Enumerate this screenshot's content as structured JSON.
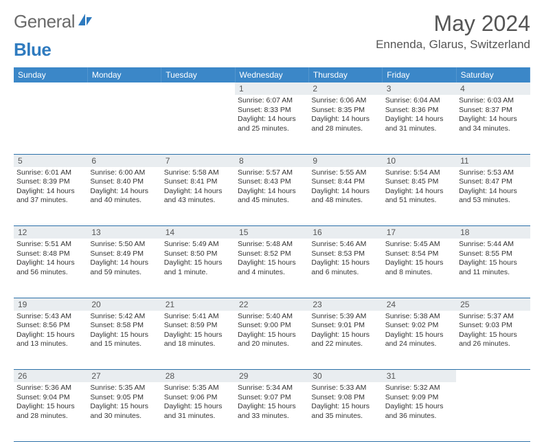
{
  "brand": {
    "name_part1": "General",
    "name_part2": "Blue"
  },
  "title": "May 2024",
  "location": "Ennenda, Glarus, Switzerland",
  "colors": {
    "header_bg": "#3b87c8",
    "header_text": "#ffffff",
    "daynum_bg": "#e9edf0",
    "border": "#2a6fa8",
    "brand_gray": "#6a6a6a",
    "brand_blue": "#2f7bbf"
  },
  "weekdays": [
    "Sunday",
    "Monday",
    "Tuesday",
    "Wednesday",
    "Thursday",
    "Friday",
    "Saturday"
  ],
  "weeks": [
    {
      "nums": [
        "",
        "",
        "",
        "1",
        "2",
        "3",
        "4"
      ],
      "cells": [
        {
          "sunrise": "",
          "sunset": "",
          "daylight": ""
        },
        {
          "sunrise": "",
          "sunset": "",
          "daylight": ""
        },
        {
          "sunrise": "",
          "sunset": "",
          "daylight": ""
        },
        {
          "sunrise": "Sunrise: 6:07 AM",
          "sunset": "Sunset: 8:33 PM",
          "daylight": "Daylight: 14 hours and 25 minutes."
        },
        {
          "sunrise": "Sunrise: 6:06 AM",
          "sunset": "Sunset: 8:35 PM",
          "daylight": "Daylight: 14 hours and 28 minutes."
        },
        {
          "sunrise": "Sunrise: 6:04 AM",
          "sunset": "Sunset: 8:36 PM",
          "daylight": "Daylight: 14 hours and 31 minutes."
        },
        {
          "sunrise": "Sunrise: 6:03 AM",
          "sunset": "Sunset: 8:37 PM",
          "daylight": "Daylight: 14 hours and 34 minutes."
        }
      ]
    },
    {
      "nums": [
        "5",
        "6",
        "7",
        "8",
        "9",
        "10",
        "11"
      ],
      "cells": [
        {
          "sunrise": "Sunrise: 6:01 AM",
          "sunset": "Sunset: 8:39 PM",
          "daylight": "Daylight: 14 hours and 37 minutes."
        },
        {
          "sunrise": "Sunrise: 6:00 AM",
          "sunset": "Sunset: 8:40 PM",
          "daylight": "Daylight: 14 hours and 40 minutes."
        },
        {
          "sunrise": "Sunrise: 5:58 AM",
          "sunset": "Sunset: 8:41 PM",
          "daylight": "Daylight: 14 hours and 43 minutes."
        },
        {
          "sunrise": "Sunrise: 5:57 AM",
          "sunset": "Sunset: 8:43 PM",
          "daylight": "Daylight: 14 hours and 45 minutes."
        },
        {
          "sunrise": "Sunrise: 5:55 AM",
          "sunset": "Sunset: 8:44 PM",
          "daylight": "Daylight: 14 hours and 48 minutes."
        },
        {
          "sunrise": "Sunrise: 5:54 AM",
          "sunset": "Sunset: 8:45 PM",
          "daylight": "Daylight: 14 hours and 51 minutes."
        },
        {
          "sunrise": "Sunrise: 5:53 AM",
          "sunset": "Sunset: 8:47 PM",
          "daylight": "Daylight: 14 hours and 53 minutes."
        }
      ]
    },
    {
      "nums": [
        "12",
        "13",
        "14",
        "15",
        "16",
        "17",
        "18"
      ],
      "cells": [
        {
          "sunrise": "Sunrise: 5:51 AM",
          "sunset": "Sunset: 8:48 PM",
          "daylight": "Daylight: 14 hours and 56 minutes."
        },
        {
          "sunrise": "Sunrise: 5:50 AM",
          "sunset": "Sunset: 8:49 PM",
          "daylight": "Daylight: 14 hours and 59 minutes."
        },
        {
          "sunrise": "Sunrise: 5:49 AM",
          "sunset": "Sunset: 8:50 PM",
          "daylight": "Daylight: 15 hours and 1 minute."
        },
        {
          "sunrise": "Sunrise: 5:48 AM",
          "sunset": "Sunset: 8:52 PM",
          "daylight": "Daylight: 15 hours and 4 minutes."
        },
        {
          "sunrise": "Sunrise: 5:46 AM",
          "sunset": "Sunset: 8:53 PM",
          "daylight": "Daylight: 15 hours and 6 minutes."
        },
        {
          "sunrise": "Sunrise: 5:45 AM",
          "sunset": "Sunset: 8:54 PM",
          "daylight": "Daylight: 15 hours and 8 minutes."
        },
        {
          "sunrise": "Sunrise: 5:44 AM",
          "sunset": "Sunset: 8:55 PM",
          "daylight": "Daylight: 15 hours and 11 minutes."
        }
      ]
    },
    {
      "nums": [
        "19",
        "20",
        "21",
        "22",
        "23",
        "24",
        "25"
      ],
      "cells": [
        {
          "sunrise": "Sunrise: 5:43 AM",
          "sunset": "Sunset: 8:56 PM",
          "daylight": "Daylight: 15 hours and 13 minutes."
        },
        {
          "sunrise": "Sunrise: 5:42 AM",
          "sunset": "Sunset: 8:58 PM",
          "daylight": "Daylight: 15 hours and 15 minutes."
        },
        {
          "sunrise": "Sunrise: 5:41 AM",
          "sunset": "Sunset: 8:59 PM",
          "daylight": "Daylight: 15 hours and 18 minutes."
        },
        {
          "sunrise": "Sunrise: 5:40 AM",
          "sunset": "Sunset: 9:00 PM",
          "daylight": "Daylight: 15 hours and 20 minutes."
        },
        {
          "sunrise": "Sunrise: 5:39 AM",
          "sunset": "Sunset: 9:01 PM",
          "daylight": "Daylight: 15 hours and 22 minutes."
        },
        {
          "sunrise": "Sunrise: 5:38 AM",
          "sunset": "Sunset: 9:02 PM",
          "daylight": "Daylight: 15 hours and 24 minutes."
        },
        {
          "sunrise": "Sunrise: 5:37 AM",
          "sunset": "Sunset: 9:03 PM",
          "daylight": "Daylight: 15 hours and 26 minutes."
        }
      ]
    },
    {
      "nums": [
        "26",
        "27",
        "28",
        "29",
        "30",
        "31",
        ""
      ],
      "cells": [
        {
          "sunrise": "Sunrise: 5:36 AM",
          "sunset": "Sunset: 9:04 PM",
          "daylight": "Daylight: 15 hours and 28 minutes."
        },
        {
          "sunrise": "Sunrise: 5:35 AM",
          "sunset": "Sunset: 9:05 PM",
          "daylight": "Daylight: 15 hours and 30 minutes."
        },
        {
          "sunrise": "Sunrise: 5:35 AM",
          "sunset": "Sunset: 9:06 PM",
          "daylight": "Daylight: 15 hours and 31 minutes."
        },
        {
          "sunrise": "Sunrise: 5:34 AM",
          "sunset": "Sunset: 9:07 PM",
          "daylight": "Daylight: 15 hours and 33 minutes."
        },
        {
          "sunrise": "Sunrise: 5:33 AM",
          "sunset": "Sunset: 9:08 PM",
          "daylight": "Daylight: 15 hours and 35 minutes."
        },
        {
          "sunrise": "Sunrise: 5:32 AM",
          "sunset": "Sunset: 9:09 PM",
          "daylight": "Daylight: 15 hours and 36 minutes."
        },
        {
          "sunrise": "",
          "sunset": "",
          "daylight": ""
        }
      ]
    }
  ]
}
